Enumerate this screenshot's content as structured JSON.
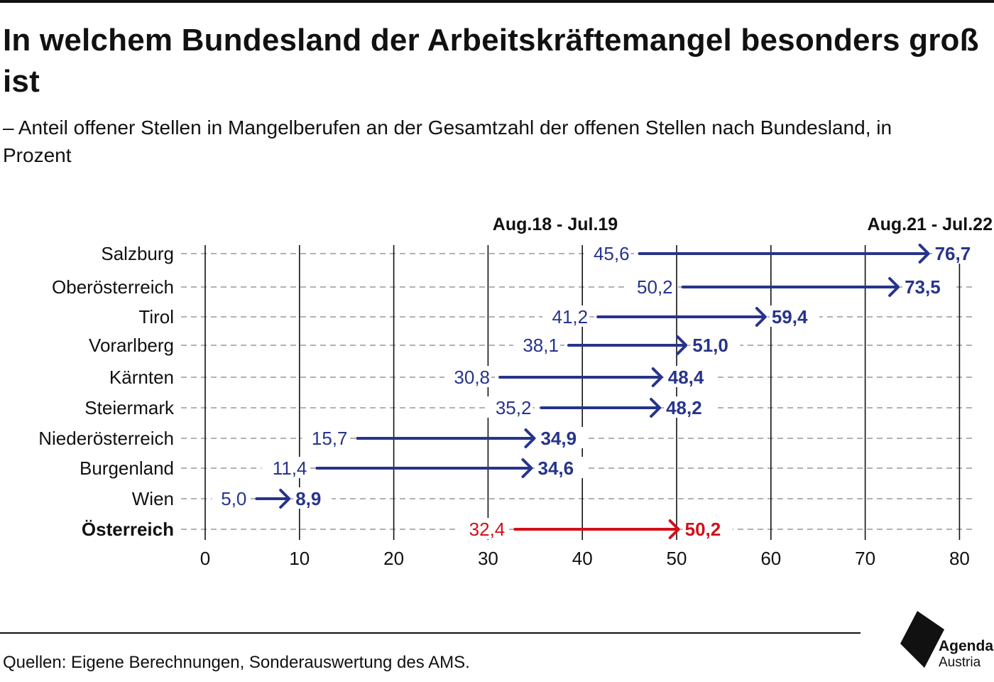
{
  "title": "In welchem Bundesland der Arbeitskräftemangel besonders groß ist",
  "subtitle": "– Anteil offener Stellen in Mangelberufen an der Gesamtzahl der offenen Stellen nach Bundesland, in Prozent",
  "source": "Quellen: Eigene Berechnungen, Sonderauswertung des AMS.",
  "logo": {
    "name": "Agenda",
    "sub": "Austria"
  },
  "colors": {
    "region": "#27348b",
    "total": "#d0101a",
    "text": "#111111",
    "grid": "#999999"
  },
  "chart_data": {
    "type": "arrow",
    "series": [
      {
        "name": "Aug.18 - Jul.19"
      },
      {
        "name": "Aug.21 - Jul.22"
      }
    ],
    "categories": [
      "Salzburg",
      "Oberösterreich",
      "Tirol",
      "Vorarlberg",
      "Kärnten",
      "Steiermark",
      "Niederösterreich",
      "Burgenland",
      "Wien",
      "Österreich"
    ],
    "rows": [
      {
        "name": "Salzburg",
        "from": 45.6,
        "to": 76.7,
        "from_label": "45,6",
        "to_label": "76,7"
      },
      {
        "name": "Oberösterreich",
        "from": 50.2,
        "to": 73.5,
        "from_label": "50,2",
        "to_label": "73,5"
      },
      {
        "name": "Tirol",
        "from": 41.2,
        "to": 59.4,
        "from_label": "41,2",
        "to_label": "59,4"
      },
      {
        "name": "Vorarlberg",
        "from": 38.1,
        "to": 51.0,
        "from_label": "38,1",
        "to_label": "51,0"
      },
      {
        "name": "Kärnten",
        "from": 30.8,
        "to": 48.4,
        "from_label": "30,8",
        "to_label": "48,4"
      },
      {
        "name": "Steiermark",
        "from": 35.2,
        "to": 48.2,
        "from_label": "35,2",
        "to_label": "48,2"
      },
      {
        "name": "Niederösterreich",
        "from": 15.7,
        "to": 34.9,
        "from_label": "15,7",
        "to_label": "34,9"
      },
      {
        "name": "Burgenland",
        "from": 11.4,
        "to": 34.6,
        "from_label": "11,4",
        "to_label": "34,6"
      },
      {
        "name": "Wien",
        "from": 5.0,
        "to": 8.9,
        "from_label": "5,0",
        "to_label": "8,9"
      },
      {
        "name": "Österreich",
        "from": 32.4,
        "to": 50.2,
        "from_label": "32,4",
        "to_label": "50,2",
        "highlight": true
      }
    ],
    "xlim": [
      0,
      80
    ],
    "xticks": [
      0,
      10,
      20,
      30,
      40,
      50,
      60,
      70,
      80
    ],
    "grid": true
  }
}
